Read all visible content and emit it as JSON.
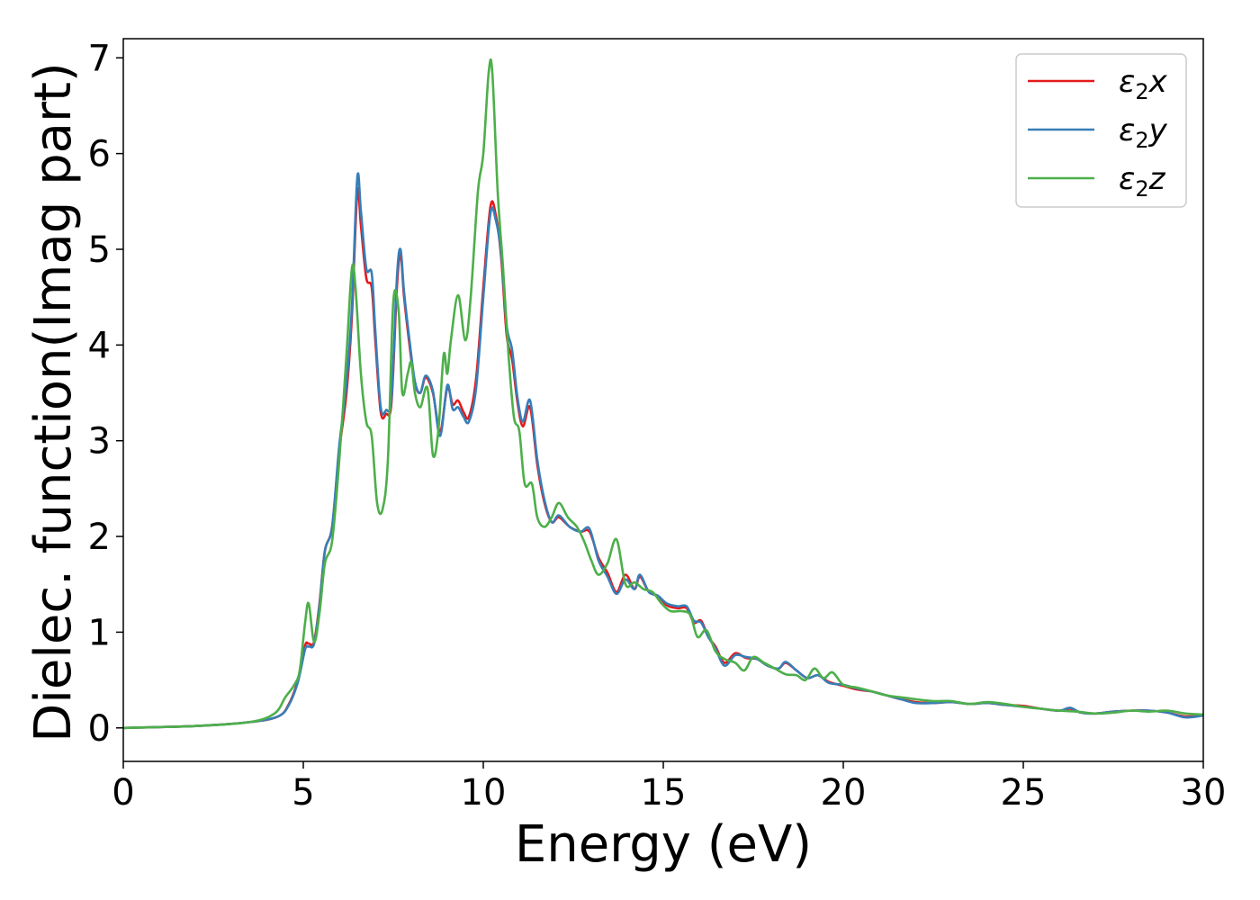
{
  "chart_data": {
    "type": "line",
    "title": "",
    "xlabel": "Energy (eV)",
    "ylabel": "Dielec. function(Imag part)",
    "xlim": [
      0,
      30
    ],
    "ylim": [
      -0.35,
      7.2
    ],
    "xticks": [
      0,
      5,
      10,
      15,
      20,
      25,
      30
    ],
    "xtick_labels": [
      "0",
      "5",
      "10",
      "15",
      "20",
      "25",
      "30"
    ],
    "yticks": [
      0,
      1,
      2,
      3,
      4,
      5,
      6,
      7
    ],
    "ytick_labels": [
      "0",
      "1",
      "2",
      "3",
      "4",
      "5",
      "6",
      "7"
    ],
    "grid": false,
    "legend_position": "top-right",
    "series": [
      {
        "name": "ε₂x",
        "label_main": "ε",
        "label_sub": "2",
        "label_var": "x",
        "color": "#e41a1c",
        "x": [
          0,
          2,
          3.5,
          4.3,
          4.6,
          4.85,
          5.05,
          5.15,
          5.3,
          5.45,
          5.6,
          5.8,
          6.0,
          6.2,
          6.35,
          6.5,
          6.6,
          6.75,
          6.9,
          7.0,
          7.15,
          7.3,
          7.45,
          7.6,
          7.7,
          7.8,
          7.95,
          8.1,
          8.25,
          8.4,
          8.6,
          8.8,
          9.0,
          9.15,
          9.3,
          9.45,
          9.6,
          9.8,
          10.0,
          10.2,
          10.35,
          10.5,
          10.65,
          10.8,
          10.95,
          11.1,
          11.3,
          11.5,
          11.7,
          11.9,
          12.1,
          12.4,
          12.7,
          12.95,
          13.2,
          13.45,
          13.7,
          13.95,
          14.2,
          14.35,
          14.6,
          14.85,
          15.1,
          15.4,
          15.65,
          15.85,
          16.05,
          16.25,
          16.45,
          16.7,
          17.0,
          17.3,
          17.6,
          17.9,
          18.2,
          18.4,
          18.7,
          19.0,
          19.3,
          19.6,
          20.0,
          20.4,
          20.8,
          21.2,
          21.6,
          22.0,
          22.5,
          23.0,
          23.5,
          24.0,
          24.5,
          25.0,
          25.5,
          26.0,
          26.3,
          26.6,
          27.0,
          27.5,
          28.0,
          28.5,
          29.0,
          29.5,
          30.0
        ],
        "y": [
          0.0,
          0.02,
          0.06,
          0.12,
          0.25,
          0.5,
          0.86,
          0.88,
          0.9,
          1.3,
          1.85,
          2.1,
          2.9,
          3.5,
          4.3,
          5.6,
          5.25,
          4.7,
          4.6,
          4.05,
          3.3,
          3.28,
          3.4,
          4.6,
          4.95,
          4.5,
          4.0,
          3.6,
          3.5,
          3.66,
          3.5,
          3.1,
          3.55,
          3.38,
          3.42,
          3.3,
          3.25,
          3.65,
          4.6,
          5.45,
          5.35,
          4.9,
          4.1,
          3.85,
          3.4,
          3.15,
          3.35,
          2.75,
          2.35,
          2.15,
          2.2,
          2.1,
          2.05,
          2.05,
          1.78,
          1.62,
          1.42,
          1.6,
          1.45,
          1.58,
          1.42,
          1.38,
          1.28,
          1.25,
          1.25,
          1.1,
          1.12,
          0.95,
          0.85,
          0.68,
          0.78,
          0.73,
          0.72,
          0.65,
          0.62,
          0.68,
          0.6,
          0.52,
          0.55,
          0.48,
          0.44,
          0.4,
          0.38,
          0.34,
          0.3,
          0.27,
          0.26,
          0.27,
          0.25,
          0.26,
          0.24,
          0.23,
          0.2,
          0.18,
          0.2,
          0.16,
          0.15,
          0.17,
          0.18,
          0.18,
          0.16,
          0.12,
          0.13
        ]
      },
      {
        "name": "ε₂y",
        "label_main": "ε",
        "label_sub": "2",
        "label_var": "y",
        "color": "#377eb8",
        "x": [
          0,
          2,
          3.5,
          4.3,
          4.6,
          4.85,
          5.05,
          5.15,
          5.3,
          5.45,
          5.6,
          5.8,
          6.0,
          6.2,
          6.35,
          6.5,
          6.6,
          6.75,
          6.9,
          7.0,
          7.15,
          7.3,
          7.45,
          7.6,
          7.7,
          7.8,
          7.95,
          8.1,
          8.25,
          8.4,
          8.6,
          8.8,
          9.0,
          9.15,
          9.3,
          9.45,
          9.6,
          9.8,
          10.0,
          10.2,
          10.35,
          10.5,
          10.65,
          10.8,
          10.95,
          11.1,
          11.3,
          11.5,
          11.7,
          11.9,
          12.1,
          12.4,
          12.7,
          12.95,
          13.2,
          13.45,
          13.7,
          13.95,
          14.2,
          14.35,
          14.6,
          14.85,
          15.1,
          15.4,
          15.65,
          15.85,
          16.05,
          16.25,
          16.45,
          16.7,
          17.0,
          17.3,
          17.6,
          17.9,
          18.2,
          18.4,
          18.7,
          19.0,
          19.3,
          19.6,
          20.0,
          20.4,
          20.8,
          21.2,
          21.6,
          22.0,
          22.5,
          23.0,
          23.5,
          24.0,
          24.5,
          25.0,
          25.5,
          26.0,
          26.3,
          26.6,
          27.0,
          27.5,
          28.0,
          28.5,
          29.0,
          29.5,
          30.0
        ],
        "y": [
          0.0,
          0.02,
          0.06,
          0.12,
          0.24,
          0.48,
          0.82,
          0.85,
          0.88,
          1.28,
          1.85,
          2.1,
          2.95,
          3.6,
          4.4,
          5.75,
          5.4,
          4.8,
          4.75,
          4.15,
          3.35,
          3.32,
          3.45,
          4.7,
          5.0,
          4.55,
          4.05,
          3.62,
          3.5,
          3.68,
          3.52,
          3.05,
          3.58,
          3.33,
          3.35,
          3.25,
          3.2,
          3.55,
          4.5,
          5.38,
          5.3,
          4.95,
          4.2,
          3.95,
          3.45,
          3.2,
          3.42,
          2.8,
          2.38,
          2.15,
          2.22,
          2.1,
          2.05,
          2.08,
          1.75,
          1.58,
          1.4,
          1.55,
          1.45,
          1.6,
          1.42,
          1.38,
          1.3,
          1.27,
          1.27,
          1.12,
          1.1,
          0.95,
          0.83,
          0.65,
          0.76,
          0.74,
          0.72,
          0.65,
          0.62,
          0.69,
          0.6,
          0.52,
          0.55,
          0.47,
          0.45,
          0.41,
          0.38,
          0.34,
          0.3,
          0.26,
          0.26,
          0.27,
          0.25,
          0.26,
          0.24,
          0.22,
          0.2,
          0.18,
          0.21,
          0.16,
          0.15,
          0.17,
          0.18,
          0.18,
          0.16,
          0.11,
          0.13
        ]
      },
      {
        "name": "ε₂z",
        "label_main": "ε",
        "label_sub": "2",
        "label_var": "z",
        "color": "#4daf4a",
        "x": [
          0,
          2,
          3.5,
          4.2,
          4.5,
          4.75,
          4.9,
          5.05,
          5.15,
          5.3,
          5.45,
          5.6,
          5.8,
          6.0,
          6.2,
          6.35,
          6.45,
          6.6,
          6.75,
          6.9,
          7.05,
          7.2,
          7.35,
          7.5,
          7.65,
          7.75,
          7.9,
          8.0,
          8.1,
          8.25,
          8.45,
          8.6,
          8.75,
          8.9,
          9.0,
          9.1,
          9.3,
          9.5,
          9.65,
          9.85,
          10.0,
          10.15,
          10.25,
          10.4,
          10.55,
          10.7,
          10.85,
          11.0,
          11.15,
          11.35,
          11.5,
          11.7,
          11.9,
          12.1,
          12.35,
          12.6,
          12.8,
          13.0,
          13.2,
          13.45,
          13.7,
          13.95,
          14.2,
          14.45,
          14.7,
          14.95,
          15.2,
          15.5,
          15.75,
          15.95,
          16.2,
          16.45,
          16.7,
          17.0,
          17.25,
          17.5,
          17.8,
          18.1,
          18.4,
          18.7,
          18.95,
          19.2,
          19.45,
          19.7,
          20.0,
          20.4,
          20.8,
          21.2,
          21.6,
          22.0,
          22.5,
          23.0,
          23.5,
          24.0,
          24.5,
          25.0,
          25.5,
          26.0,
          26.5,
          27.0,
          27.5,
          28.0,
          28.5,
          29.0,
          29.5,
          30.0
        ],
        "y": [
          0.0,
          0.02,
          0.06,
          0.15,
          0.32,
          0.45,
          0.6,
          1.1,
          1.3,
          0.9,
          1.2,
          1.72,
          1.95,
          2.8,
          3.9,
          4.8,
          4.6,
          3.7,
          3.2,
          3.05,
          2.35,
          2.28,
          2.8,
          4.45,
          4.35,
          3.5,
          3.7,
          3.82,
          3.5,
          3.35,
          3.55,
          2.85,
          3.1,
          3.9,
          3.7,
          4.05,
          4.52,
          4.05,
          4.5,
          5.6,
          6.0,
          6.85,
          6.85,
          5.6,
          4.8,
          3.9,
          3.25,
          3.1,
          2.55,
          2.55,
          2.2,
          2.1,
          2.2,
          2.35,
          2.2,
          2.1,
          1.95,
          1.75,
          1.6,
          1.72,
          1.97,
          1.5,
          1.52,
          1.45,
          1.42,
          1.3,
          1.22,
          1.22,
          1.18,
          0.95,
          1.02,
          0.8,
          0.72,
          0.68,
          0.6,
          0.74,
          0.68,
          0.62,
          0.56,
          0.55,
          0.5,
          0.62,
          0.52,
          0.58,
          0.45,
          0.42,
          0.38,
          0.34,
          0.32,
          0.3,
          0.28,
          0.28,
          0.25,
          0.27,
          0.25,
          0.22,
          0.2,
          0.18,
          0.17,
          0.15,
          0.16,
          0.18,
          0.17,
          0.18,
          0.15,
          0.14
        ]
      }
    ]
  }
}
